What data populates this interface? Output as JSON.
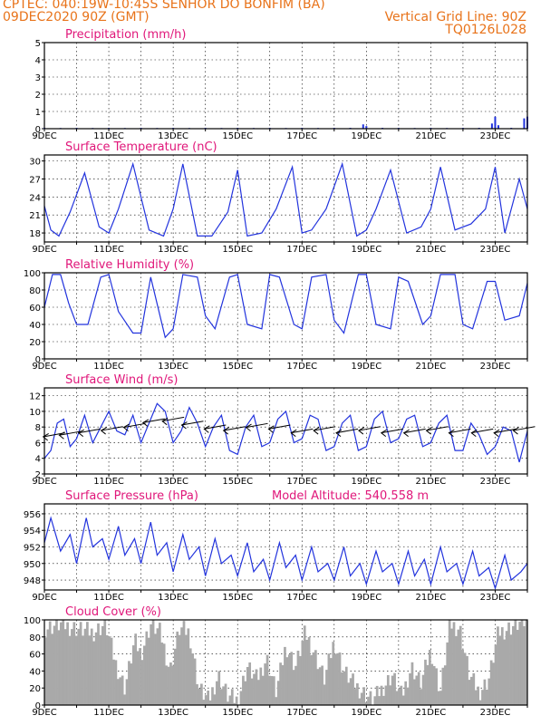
{
  "header": {
    "line1": "CPTEC:   040:19W-10:45S   SENHOR DO BONFIM (BA)",
    "line2": "09DEC2020 90Z (GMT)",
    "grid_note": "Vertical Grid Line: 90Z",
    "code": "TQ0126L028"
  },
  "colors": {
    "header": "#e8731a",
    "title": "#e0177a",
    "series": "#2233dd",
    "cloud": "#a9a9a9"
  },
  "x_ticks": [
    "9DEC",
    "11DEC",
    "13DEC",
    "15DEC",
    "17DEC",
    "19DEC",
    "21DEC",
    "23DEC"
  ],
  "chart_data": [
    {
      "id": "precip",
      "type": "bar",
      "title": "Precipitation (mm/h)",
      "ylim": [
        0,
        5
      ],
      "yticks": [
        "0",
        "1",
        "2",
        "3",
        "4",
        "5"
      ],
      "x": [
        9.0,
        9.5,
        10.0,
        10.5,
        11.0,
        11.5,
        12.0,
        12.5,
        13.0,
        13.5,
        14.0,
        14.5,
        15.0,
        15.5,
        16.0,
        16.5,
        17.0,
        17.5,
        18.0,
        18.5,
        18.9,
        19.0,
        19.5,
        20.0,
        20.5,
        21.0,
        21.5,
        22.0,
        22.5,
        22.9,
        23.0,
        23.1,
        23.5,
        23.9,
        24.0
      ],
      "values": [
        0.05,
        0.04,
        0.05,
        0.04,
        0.05,
        0.04,
        0.05,
        0.04,
        0.05,
        0.04,
        0.05,
        0.04,
        0.05,
        0.04,
        0.05,
        0.04,
        0.05,
        0.04,
        0.05,
        0.05,
        0.25,
        0.15,
        0.05,
        0.05,
        0.04,
        0.05,
        0.04,
        0.05,
        0.05,
        0.3,
        0.7,
        0.2,
        0.05,
        0.6,
        0.7
      ]
    },
    {
      "id": "temp",
      "type": "line",
      "title": "Surface Temperature (nC)",
      "ylim": [
        16.5,
        31
      ],
      "yticks": [
        "18",
        "21",
        "24",
        "27",
        "30"
      ],
      "x": [
        9.0,
        9.2,
        9.45,
        9.8,
        10.25,
        10.7,
        11.0,
        11.3,
        11.75,
        12.25,
        12.7,
        13.0,
        13.3,
        13.75,
        14.2,
        14.7,
        15.0,
        15.3,
        15.75,
        16.2,
        16.7,
        17.0,
        17.3,
        17.75,
        18.25,
        18.7,
        19.0,
        19.3,
        19.75,
        20.25,
        20.7,
        21.0,
        21.3,
        21.75,
        22.25,
        22.7,
        23.0,
        23.3,
        23.75,
        24.0
      ],
      "values": [
        22.5,
        18.5,
        17.5,
        21.5,
        28.0,
        19.0,
        18.0,
        22.0,
        29.5,
        18.5,
        17.5,
        22.0,
        29.5,
        17.5,
        17.5,
        21.5,
        28.5,
        17.5,
        18.0,
        22.0,
        29.0,
        18.0,
        18.5,
        22.0,
        29.5,
        17.5,
        18.5,
        22.0,
        28.5,
        18.0,
        19.0,
        22.0,
        29.0,
        18.5,
        19.5,
        22.0,
        29.0,
        18.0,
        27.0,
        22.0
      ]
    },
    {
      "id": "rh",
      "type": "line",
      "title": "Relative Humidity (%)",
      "ylim": [
        0,
        100
      ],
      "yticks": [
        "0",
        "20",
        "40",
        "60",
        "80",
        "100"
      ],
      "x": [
        9.0,
        9.25,
        9.5,
        9.75,
        10.0,
        10.35,
        10.75,
        11.0,
        11.3,
        11.75,
        12.0,
        12.3,
        12.75,
        13.0,
        13.3,
        13.75,
        14.0,
        14.3,
        14.75,
        15.0,
        15.3,
        15.75,
        16.0,
        16.3,
        16.75,
        17.0,
        17.3,
        17.75,
        18.0,
        18.3,
        18.75,
        19.0,
        19.3,
        19.75,
        20.0,
        20.3,
        20.75,
        21.0,
        21.3,
        21.75,
        22.0,
        22.3,
        22.75,
        23.0,
        23.3,
        23.75,
        24.0
      ],
      "values": [
        60,
        98,
        98,
        65,
        40,
        40,
        95,
        98,
        55,
        30,
        30,
        95,
        25,
        35,
        98,
        95,
        50,
        35,
        95,
        98,
        40,
        35,
        98,
        95,
        40,
        35,
        95,
        98,
        45,
        30,
        98,
        98,
        40,
        35,
        95,
        90,
        40,
        50,
        98,
        98,
        40,
        35,
        90,
        90,
        45,
        50,
        88
      ]
    },
    {
      "id": "wind",
      "type": "line",
      "title": "Surface Wind (m/s)",
      "ylim": [
        2,
        13
      ],
      "yticks": [
        "2",
        "4",
        "6",
        "8",
        "10",
        "12"
      ],
      "x": [
        9.0,
        9.2,
        9.4,
        9.6,
        9.8,
        10.0,
        10.25,
        10.5,
        10.75,
        11.0,
        11.25,
        11.5,
        11.75,
        12.0,
        12.25,
        12.5,
        12.75,
        13.0,
        13.25,
        13.5,
        13.75,
        14.0,
        14.25,
        14.5,
        14.75,
        15.0,
        15.25,
        15.5,
        15.75,
        16.0,
        16.25,
        16.5,
        16.75,
        17.0,
        17.25,
        17.5,
        17.75,
        18.0,
        18.25,
        18.5,
        18.75,
        19.0,
        19.25,
        19.5,
        19.75,
        20.0,
        20.25,
        20.5,
        20.75,
        21.0,
        21.25,
        21.5,
        21.75,
        22.0,
        22.25,
        22.5,
        22.75,
        23.0,
        23.25,
        23.5,
        23.75,
        24.0
      ],
      "values": [
        4.0,
        5.0,
        8.5,
        9.0,
        5.5,
        6.5,
        9.5,
        6.0,
        8.0,
        10.0,
        7.5,
        7.0,
        9.5,
        6.0,
        8.5,
        11.0,
        10.0,
        6.0,
        7.5,
        10.5,
        8.5,
        5.5,
        8.0,
        9.5,
        5.0,
        4.5,
        8.0,
        9.5,
        5.5,
        6.0,
        9.0,
        10.0,
        6.0,
        6.5,
        9.5,
        9.0,
        5.0,
        5.5,
        8.5,
        9.5,
        5.0,
        5.5,
        9.0,
        10.0,
        6.0,
        6.5,
        9.0,
        9.5,
        5.5,
        6.0,
        8.5,
        9.5,
        5.0,
        5.0,
        8.5,
        7.0,
        4.5,
        5.5,
        8.0,
        7.5,
        3.5,
        7.5
      ],
      "arrows_x": [
        9.3,
        9.8,
        10.4,
        11.1,
        11.8,
        12.4,
        13.0,
        13.6,
        14.3,
        14.9,
        15.6,
        16.3,
        17.0,
        17.7,
        18.4,
        19.1,
        19.8,
        20.5,
        21.2,
        21.9,
        22.6,
        23.3,
        23.9
      ],
      "arrows_speed": [
        7.0,
        7.2,
        7.5,
        7.8,
        8.2,
        8.8,
        9.0,
        8.5,
        8.0,
        7.8,
        8.2,
        8.0,
        7.5,
        7.8,
        7.5,
        7.8,
        7.5,
        7.5,
        7.8,
        7.5,
        7.5,
        7.5,
        7.8
      ]
    },
    {
      "id": "pres",
      "type": "line",
      "title": "Surface Pressure (hPa)",
      "ylim": [
        946.8,
        957.2
      ],
      "yticks": [
        "948",
        "950",
        "952",
        "954",
        "956"
      ],
      "x": [
        9.0,
        9.2,
        9.5,
        9.8,
        10.0,
        10.3,
        10.5,
        10.8,
        11.0,
        11.3,
        11.5,
        11.8,
        12.0,
        12.3,
        12.5,
        12.8,
        13.0,
        13.3,
        13.5,
        13.8,
        14.0,
        14.3,
        14.5,
        14.8,
        15.0,
        15.3,
        15.5,
        15.8,
        16.0,
        16.3,
        16.5,
        16.8,
        17.0,
        17.3,
        17.5,
        17.8,
        18.0,
        18.3,
        18.5,
        18.8,
        19.0,
        19.3,
        19.5,
        19.8,
        20.0,
        20.3,
        20.5,
        20.8,
        21.0,
        21.3,
        21.5,
        21.8,
        22.0,
        22.3,
        22.5,
        22.8,
        23.0,
        23.3,
        23.5,
        23.8,
        24.0
      ],
      "values": [
        952.5,
        955.5,
        951.5,
        953.5,
        950.0,
        955.5,
        952.0,
        953.0,
        950.5,
        954.5,
        951.0,
        953.0,
        950.0,
        955.0,
        951.0,
        952.5,
        949.0,
        953.5,
        950.5,
        952.0,
        948.5,
        953.0,
        950.0,
        951.0,
        948.5,
        952.5,
        949.0,
        950.5,
        948.0,
        952.5,
        949.5,
        951.0,
        948.0,
        952.0,
        949.0,
        950.0,
        948.0,
        952.0,
        948.5,
        950.0,
        947.5,
        951.5,
        949.0,
        950.0,
        947.5,
        951.5,
        948.5,
        950.5,
        947.5,
        952.0,
        949.0,
        950.0,
        947.5,
        951.5,
        948.5,
        949.5,
        947.0,
        951.0,
        948.0,
        949.0,
        950.0
      ],
      "annotation": "Model Altitude: 540.558 m"
    },
    {
      "id": "cloud",
      "type": "area",
      "title": "Cloud Cover (%)",
      "ylim": [
        0,
        100
      ],
      "yticks": [
        "0",
        "20",
        "40",
        "60",
        "80",
        "100"
      ],
      "x": [
        9.0,
        9.5,
        10.0,
        10.5,
        10.9,
        11.2,
        11.5,
        11.8,
        12.0,
        12.3,
        12.6,
        12.9,
        13.2,
        13.5,
        13.8,
        14.1,
        14.4,
        14.7,
        15.0,
        15.3,
        15.6,
        15.9,
        16.2,
        16.5,
        16.8,
        17.1,
        17.4,
        17.7,
        18.0,
        18.3,
        18.6,
        18.9,
        19.2,
        19.5,
        19.8,
        20.1,
        20.4,
        20.7,
        21.0,
        21.3,
        21.6,
        21.9,
        22.2,
        22.5,
        22.8,
        23.1,
        23.4,
        23.7,
        24.0
      ],
      "values": [
        90,
        95,
        90,
        85,
        95,
        50,
        20,
        75,
        60,
        95,
        85,
        40,
        90,
        85,
        20,
        5,
        35,
        10,
        5,
        45,
        30,
        55,
        15,
        70,
        45,
        85,
        60,
        30,
        75,
        40,
        25,
        15,
        5,
        20,
        35,
        10,
        45,
        25,
        65,
        15,
        95,
        90,
        35,
        15,
        30,
        85,
        90,
        95,
        98
      ]
    }
  ]
}
